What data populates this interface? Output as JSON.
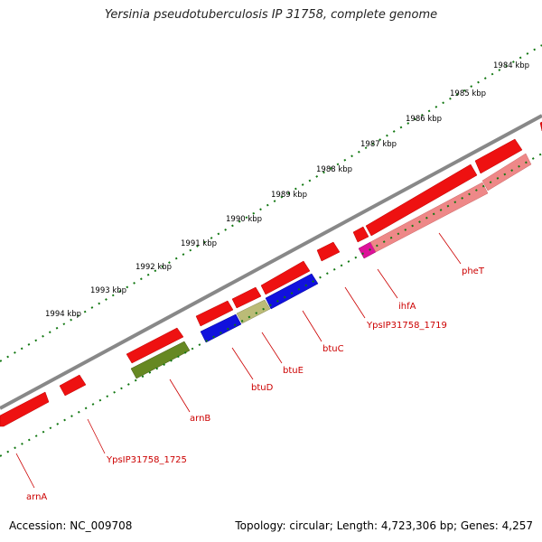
{
  "title": "Yersinia pseudotuberculosis IP 31758, complete genome",
  "accession": "Accession: NC_009708",
  "summary": "Topology: circular; Length: 4,723,306 bp; Genes: 4,257",
  "colors": {
    "forward_cds": "#ee1111",
    "backbone": "#888888",
    "ticks": "#117711",
    "label": "#cc0000",
    "olive": "#668822",
    "blue": "#1111dd",
    "khaki": "#bbbb77",
    "magenta": "#dd1199",
    "pink": "#ee8888"
  },
  "kbp_ticks": [
    "1984 kbp",
    "1985 kbp",
    "1986 kbp",
    "1987 kbp",
    "1988 kbp",
    "1989 kbp",
    "1990 kbp",
    "1991 kbp",
    "1992 kbp",
    "1993 kbp",
    "1994 kbp"
  ],
  "gene_labels": [
    "arnA",
    "YpsIP31758_1725",
    "arnB",
    "btuD",
    "btuE",
    "btuC",
    "YpsIP31758_1719",
    "ihfA",
    "pheT"
  ]
}
